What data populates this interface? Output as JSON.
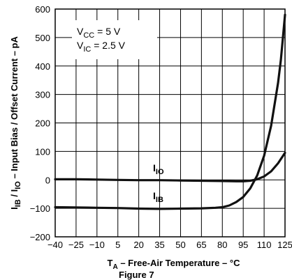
{
  "chart_data": {
    "type": "line",
    "title": "",
    "xlabel": {
      "main": "T",
      "sub": "A",
      "rest": " – Free-Air Temperature – °C"
    },
    "ylabel": {
      "parts": [
        {
          "t": "I",
          "sub": false
        },
        {
          "t": "IB",
          "sub": true
        },
        {
          "t": " / I",
          "sub": false
        },
        {
          "t": "IO",
          "sub": true
        },
        {
          "t": " – Input Bias / Offset Current – pA",
          "sub": false
        }
      ]
    },
    "xlim": [
      -40,
      125
    ],
    "ylim": [
      -200,
      600
    ],
    "x_ticks": [
      -40,
      -25,
      -10,
      5,
      20,
      35,
      50,
      65,
      80,
      95,
      110,
      125
    ],
    "x_tick_labels": [
      "−40",
      "−25",
      "−10",
      "5",
      "20",
      "35",
      "50",
      "65",
      "80",
      "95",
      "110",
      "125"
    ],
    "y_ticks": [
      -200,
      -100,
      0,
      100,
      200,
      300,
      400,
      500,
      600
    ],
    "y_tick_labels": [
      "−200",
      "−100",
      "0",
      "100",
      "200",
      "300",
      "400",
      "500",
      "600"
    ],
    "grid": true,
    "annotations": [
      {
        "main": "V",
        "sub": "CC",
        "rest": " = 5 V"
      },
      {
        "main": "V",
        "sub": "IC",
        "rest": " = 2.5 V"
      }
    ],
    "series": [
      {
        "name": {
          "main": "I",
          "sub": "IO"
        },
        "x": [
          -40,
          -25,
          -10,
          5,
          20,
          35,
          50,
          65,
          80,
          90,
          95,
          100,
          105,
          110,
          115,
          120,
          125
        ],
        "y": [
          2,
          2,
          1,
          0,
          -1,
          -1,
          -2,
          -3,
          -4,
          -5,
          -5,
          -3,
          2,
          12,
          30,
          58,
          95
        ]
      },
      {
        "name": {
          "main": "I",
          "sub": "IB"
        },
        "x": [
          -40,
          -25,
          -10,
          5,
          20,
          35,
          50,
          65,
          75,
          80,
          85,
          90,
          95,
          100,
          105,
          110,
          115,
          120,
          122,
          125
        ],
        "y": [
          -96,
          -97,
          -98,
          -99,
          -101,
          -102,
          -101,
          -100,
          -98,
          -96,
          -90,
          -78,
          -60,
          -30,
          15,
          85,
          190,
          340,
          420,
          580
        ]
      }
    ]
  },
  "caption": "Figure 7"
}
